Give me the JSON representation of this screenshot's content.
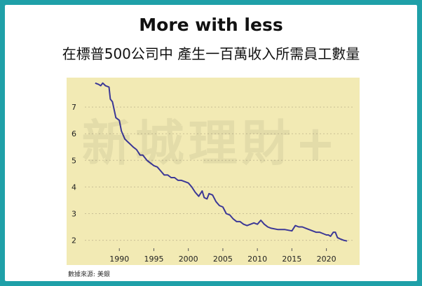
{
  "header": {
    "title": "More with less",
    "subtitle": "在標普500公司中 產生一百萬收入所需員工數量"
  },
  "watermark": "新城理財+",
  "source": "數據來源: 美銀",
  "colors": {
    "frame": "#1fa0a8",
    "plot_bg": "#f2eab4",
    "line": "#3c3896",
    "grid": "#c9bf95"
  },
  "chart_data": {
    "type": "line",
    "title": "",
    "xlabel": "",
    "ylabel": "",
    "xlim": [
      1985,
      2024
    ],
    "ylim": [
      1.7,
      8.0
    ],
    "xticks": [
      1990,
      1995,
      2000,
      2005,
      2010,
      2015,
      2020
    ],
    "yticks": [
      2,
      3,
      4,
      5,
      6,
      7
    ],
    "grid": "horizontal-dotted",
    "series": [
      {
        "name": "",
        "x": [
          1986.5,
          1987.0,
          1987.3,
          1987.6,
          1988.0,
          1988.5,
          1988.7,
          1989.0,
          1989.5,
          1990.0,
          1990.3,
          1990.8,
          1991.2,
          1991.6,
          1992.0,
          1992.5,
          1993.0,
          1993.4,
          1994.0,
          1994.5,
          1995.0,
          1995.5,
          1996.0,
          1996.5,
          1997.0,
          1997.5,
          1998.0,
          1998.5,
          1999.0,
          1999.5,
          2000.0,
          2000.5,
          2001.0,
          2001.5,
          2002.0,
          2002.3,
          2002.7,
          2003.0,
          2003.5,
          2004.0,
          2004.5,
          2005.0,
          2005.5,
          2006.0,
          2006.5,
          2007.0,
          2007.5,
          2008.0,
          2008.5,
          2009.0,
          2009.5,
          2010.0,
          2010.5,
          2011.0,
          2011.5,
          2012.0,
          2013.0,
          2014.0,
          2015.0,
          2015.5,
          2016.0,
          2016.5,
          2017.0,
          2017.5,
          2018.0,
          2018.5,
          2019.0,
          2019.5,
          2020.0,
          2020.3,
          2020.6,
          2021.0,
          2021.3,
          2021.6,
          2022.0,
          2022.5,
          2023.0
        ],
        "y": [
          7.9,
          7.85,
          7.8,
          7.9,
          7.8,
          7.75,
          7.3,
          7.2,
          6.6,
          6.5,
          6.1,
          5.8,
          5.7,
          5.6,
          5.5,
          5.4,
          5.2,
          5.2,
          5.0,
          4.9,
          4.8,
          4.75,
          4.6,
          4.45,
          4.45,
          4.35,
          4.35,
          4.25,
          4.25,
          4.2,
          4.15,
          4.0,
          3.8,
          3.65,
          3.85,
          3.6,
          3.55,
          3.75,
          3.7,
          3.45,
          3.3,
          3.25,
          3.0,
          2.95,
          2.8,
          2.7,
          2.7,
          2.6,
          2.55,
          2.6,
          2.65,
          2.6,
          2.75,
          2.6,
          2.5,
          2.45,
          2.4,
          2.4,
          2.35,
          2.55,
          2.5,
          2.5,
          2.45,
          2.4,
          2.35,
          2.3,
          2.3,
          2.25,
          2.2,
          2.2,
          2.15,
          2.3,
          2.3,
          2.1,
          2.05,
          2.0,
          1.97
        ]
      }
    ]
  }
}
